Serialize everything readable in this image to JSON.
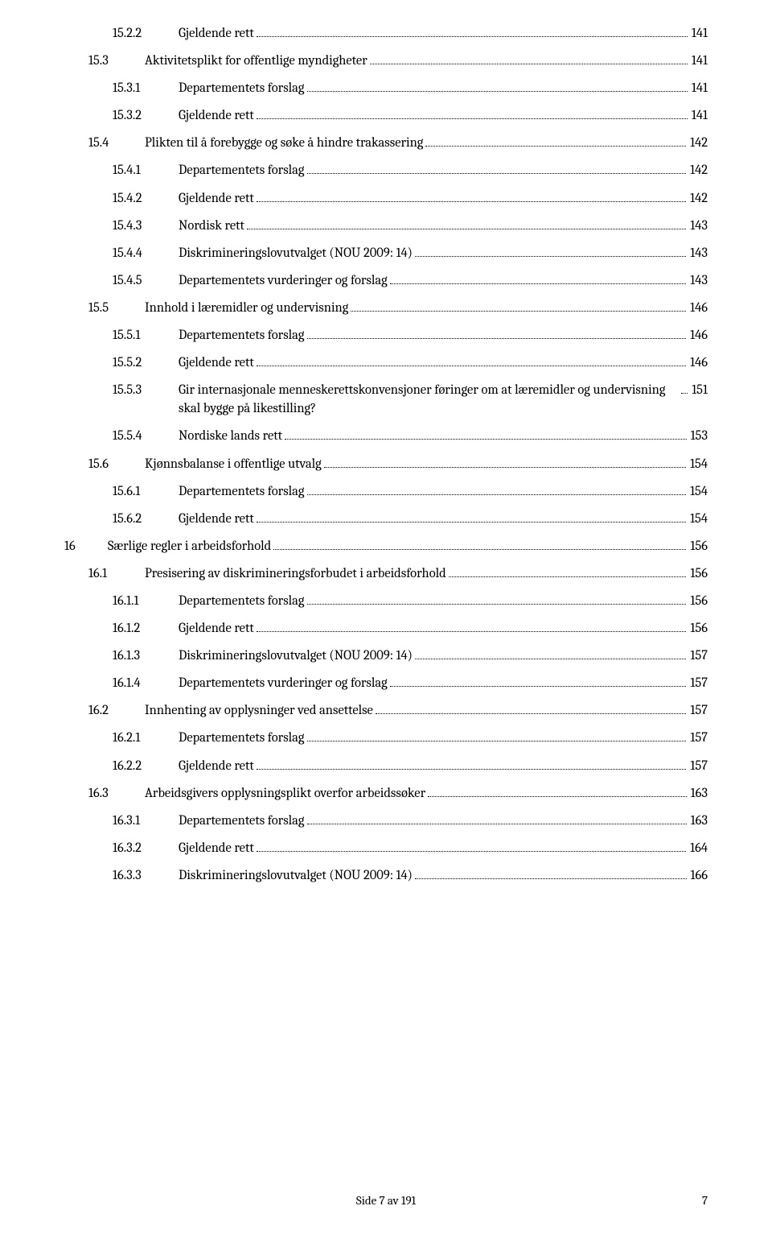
{
  "toc": [
    {
      "level": 3,
      "num": "15.2.2",
      "title": "Gjeldende rett",
      "page": "141"
    },
    {
      "level": 2,
      "num": "15.3",
      "title": "Aktivitetsplikt for offentlige myndigheter",
      "page": "141"
    },
    {
      "level": 3,
      "num": "15.3.1",
      "title": "Departementets forslag",
      "page": "141"
    },
    {
      "level": 3,
      "num": "15.3.2",
      "title": "Gjeldende rett",
      "page": "141"
    },
    {
      "level": 2,
      "num": "15.4",
      "title": "Plikten til å forebygge og søke å hindre trakassering",
      "page": "142"
    },
    {
      "level": 3,
      "num": "15.4.1",
      "title": "Departementets forslag",
      "page": "142"
    },
    {
      "level": 3,
      "num": "15.4.2",
      "title": "Gjeldende rett",
      "page": "142"
    },
    {
      "level": 3,
      "num": "15.4.3",
      "title": "Nordisk rett",
      "page": "143"
    },
    {
      "level": 3,
      "num": "15.4.4",
      "title": "Diskrimineringslovutvalget (NOU 2009: 14)",
      "page": "143"
    },
    {
      "level": 3,
      "num": "15.4.5",
      "title": "Departementets vurderinger og forslag",
      "page": "143"
    },
    {
      "level": 2,
      "num": "15.5",
      "title": "Innhold i læremidler og undervisning",
      "page": "146"
    },
    {
      "level": 3,
      "num": "15.5.1",
      "title": "Departementets forslag",
      "page": "146"
    },
    {
      "level": 3,
      "num": "15.5.2",
      "title": "Gjeldende rett",
      "page": "146"
    },
    {
      "level": 3,
      "num": "15.5.3",
      "title": "Gir internasjonale menneskerettskonvensjoner føringer om at læremidler og undervisning skal bygge på likestilling?",
      "page": "151"
    },
    {
      "level": 3,
      "num": "15.5.4",
      "title": "Nordiske lands rett",
      "page": "153"
    },
    {
      "level": 2,
      "num": "15.6",
      "title": "Kjønnsbalanse i offentlige utvalg",
      "page": "154"
    },
    {
      "level": 3,
      "num": "15.6.1",
      "title": "Departementets forslag",
      "page": "154"
    },
    {
      "level": 3,
      "num": "15.6.2",
      "title": "Gjeldende rett",
      "page": "154"
    },
    {
      "level": 1,
      "num": "16",
      "title": "Særlige regler i arbeidsforhold",
      "page": "156"
    },
    {
      "level": 2,
      "num": "16.1",
      "title": "Presisering av diskrimineringsforbudet i arbeidsforhold",
      "page": "156"
    },
    {
      "level": 3,
      "num": "16.1.1",
      "title": "Departementets forslag",
      "page": "156"
    },
    {
      "level": 3,
      "num": "16.1.2",
      "title": "Gjeldende rett",
      "page": "156"
    },
    {
      "level": 3,
      "num": "16.1.3",
      "title": "Diskrimineringslovutvalget (NOU 2009: 14)",
      "page": "157"
    },
    {
      "level": 3,
      "num": "16.1.4",
      "title": "Departementets vurderinger og forslag",
      "page": "157"
    },
    {
      "level": 2,
      "num": "16.2",
      "title": "Innhenting av opplysninger ved ansettelse",
      "page": "157"
    },
    {
      "level": 3,
      "num": "16.2.1",
      "title": "Departementets forslag",
      "page": "157"
    },
    {
      "level": 3,
      "num": "16.2.2",
      "title": "Gjeldende rett",
      "page": "157"
    },
    {
      "level": 2,
      "num": "16.3",
      "title": "Arbeidsgivers opplysningsplikt overfor arbeidssøker",
      "page": "163"
    },
    {
      "level": 3,
      "num": "16.3.1",
      "title": "Departementets forslag",
      "page": "163"
    },
    {
      "level": 3,
      "num": "16.3.2",
      "title": "Gjeldende rett",
      "page": "164"
    },
    {
      "level": 3,
      "num": "16.3.3",
      "title": "Diskrimineringslovutvalget (NOU 2009: 14)",
      "page": "166"
    }
  ],
  "footer": "Side 7 av 191",
  "pagenum": "7"
}
